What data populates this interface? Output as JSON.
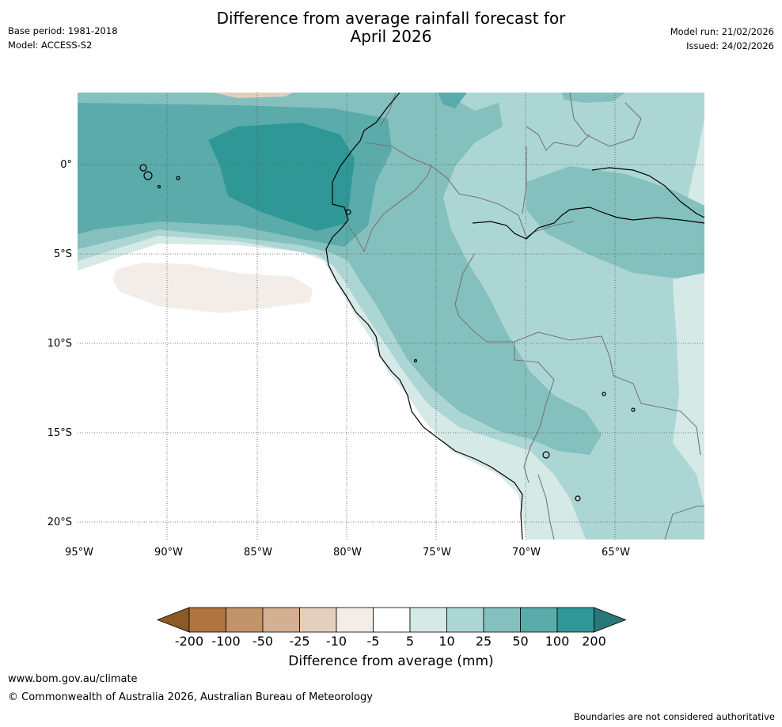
{
  "header": {
    "title_line1": "Difference from average rainfall forecast for",
    "title_line2": "April 2026",
    "base_period": "Base period: 1981-2018",
    "model": "Model: ACCESS-S2",
    "model_run": "Model run: 21/02/2026",
    "issued": "Issued: 24/02/2026"
  },
  "map": {
    "region": "Western South America (Ecuador, Peru, Colombia, Brazil, Bolivia)",
    "lat_labels": [
      "0°",
      "5°S",
      "10°S",
      "15°S",
      "20°S"
    ],
    "lon_labels": [
      "95°W",
      "90°W",
      "85°W",
      "80°W",
      "75°W",
      "70°W",
      "65°W"
    ],
    "lat_range": [
      -21,
      4
    ],
    "lon_range": [
      -95,
      -60
    ]
  },
  "colorbar": {
    "label": "Difference from average (mm)",
    "ticks": [
      "-200",
      "-100",
      "-50",
      "-25",
      "-10",
      "-5",
      "5",
      "10",
      "25",
      "50",
      "100",
      "200"
    ],
    "colors": [
      "#8c5a25",
      "#af7440",
      "#c2946a",
      "#d2b091",
      "#e3cfbe",
      "#f2ede8",
      "#ffffff",
      "#d5e9e7",
      "#acd6d4",
      "#84c0bd",
      "#5aabaa",
      "#2f9896",
      "#2a7777"
    ]
  },
  "footer": {
    "url": "www.bom.gov.au/climate",
    "copyright": "© Commonwealth of Australia 2026, Australian Bureau of Meteorology",
    "note": "Boundaries are not considered authoritative"
  }
}
